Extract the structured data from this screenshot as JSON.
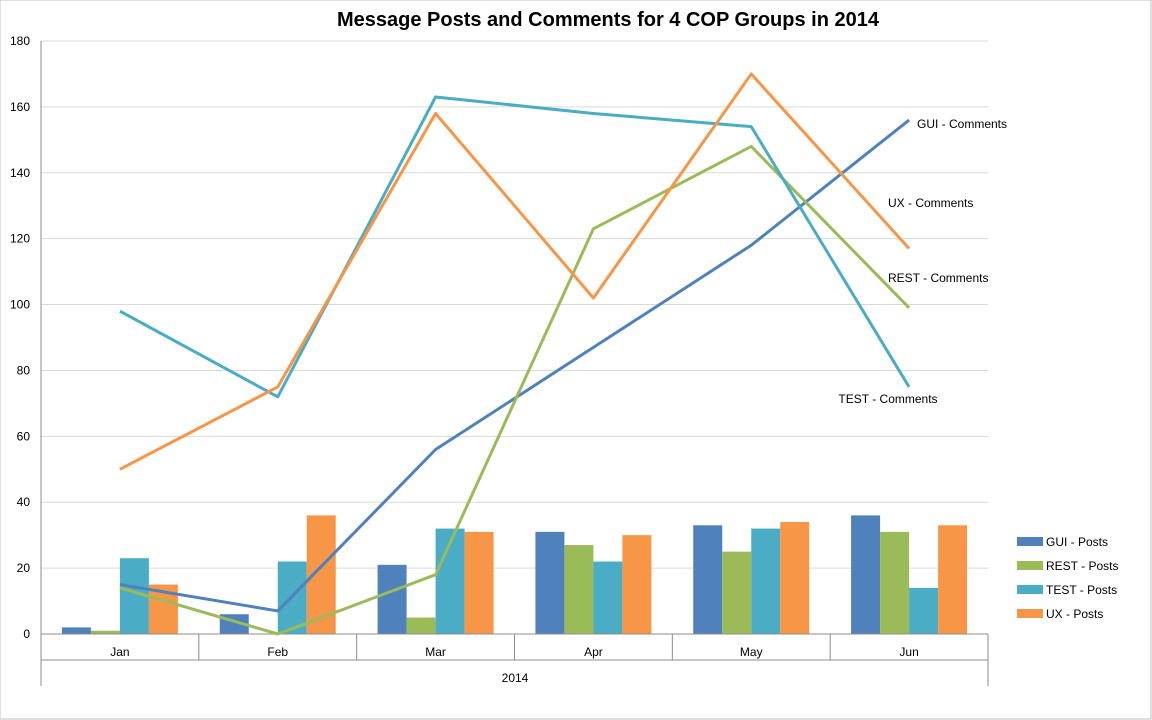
{
  "chart_data": {
    "type": "bar",
    "title": "Message Posts and Comments for 4 COP Groups in 2014",
    "xlabel": "2014",
    "ylabel": "",
    "categories": [
      "Jan",
      "Feb",
      "Mar",
      "Apr",
      "May",
      "Jun"
    ],
    "ylim": [
      0,
      180
    ],
    "yticks": [
      0,
      20,
      40,
      60,
      80,
      100,
      120,
      140,
      160,
      180
    ],
    "grid": true,
    "legend_position": "right",
    "bar_series": [
      {
        "name": "GUI - Posts",
        "color": "#4f81bd",
        "values": [
          2,
          6,
          21,
          31,
          33,
          36
        ]
      },
      {
        "name": "REST - Posts",
        "color": "#9bbb59",
        "values": [
          1,
          0,
          5,
          27,
          25,
          31
        ]
      },
      {
        "name": "TEST - Posts",
        "color": "#4bacc6",
        "values": [
          23,
          22,
          32,
          22,
          32,
          14
        ]
      },
      {
        "name": "UX - Posts",
        "color": "#f79646",
        "values": [
          15,
          36,
          31,
          30,
          34,
          33
        ]
      }
    ],
    "line_series": [
      {
        "name": "GUI - Comments",
        "color": "#4f81bd",
        "values": [
          15,
          7,
          56,
          87,
          118,
          156
        ]
      },
      {
        "name": "REST - Comments",
        "color": "#9bbb59",
        "values": [
          14,
          0,
          18,
          123,
          148,
          99
        ]
      },
      {
        "name": "TEST - Comments",
        "color": "#4bacc6",
        "values": [
          98,
          72,
          163,
          158,
          154,
          75
        ]
      },
      {
        "name": "UX - Comments",
        "color": "#f79646",
        "values": [
          50,
          75,
          158,
          102,
          170,
          117
        ]
      }
    ]
  }
}
